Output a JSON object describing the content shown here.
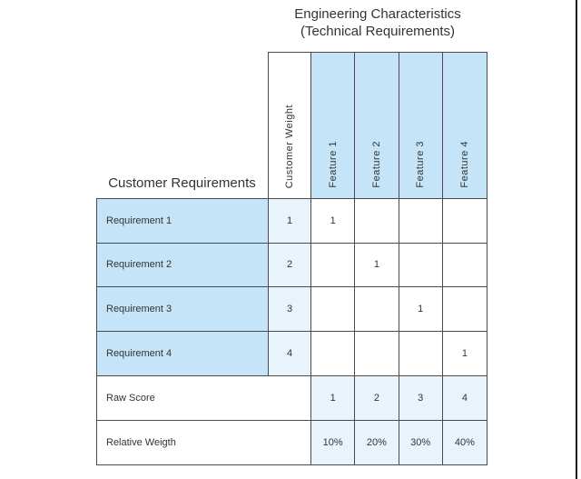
{
  "title": {
    "line1": "Engineering Characteristics",
    "line2": "(Technical Requirements)"
  },
  "left_header": "Customer Requirements",
  "columns": [
    "Customer Weight",
    "Feature 1",
    "Feature 2",
    "Feature 3",
    "Feature 4"
  ],
  "rows": [
    {
      "name": "Requirement 1",
      "weight": "1",
      "cells": [
        "1",
        "",
        "",
        ""
      ]
    },
    {
      "name": "Requirement 2",
      "weight": "2",
      "cells": [
        "",
        "1",
        "",
        ""
      ]
    },
    {
      "name": "Requirement 3",
      "weight": "3",
      "cells": [
        "",
        "",
        "1",
        ""
      ]
    },
    {
      "name": "Requirement 4",
      "weight": "4",
      "cells": [
        "",
        "",
        "",
        "1"
      ]
    }
  ],
  "summary": [
    {
      "label": "Raw Score",
      "values": [
        "1",
        "2",
        "3",
        "4"
      ]
    },
    {
      "label": "Relative Weigth",
      "values": [
        "10%",
        "20%",
        "30%",
        "40%"
      ]
    }
  ],
  "colors": {
    "cell_blue": "#C5E4F7",
    "cell_light_blue": "#E8F3FC",
    "border": "#4A4A4A",
    "text": "#333333",
    "page_edge": "#1A1A1A"
  }
}
